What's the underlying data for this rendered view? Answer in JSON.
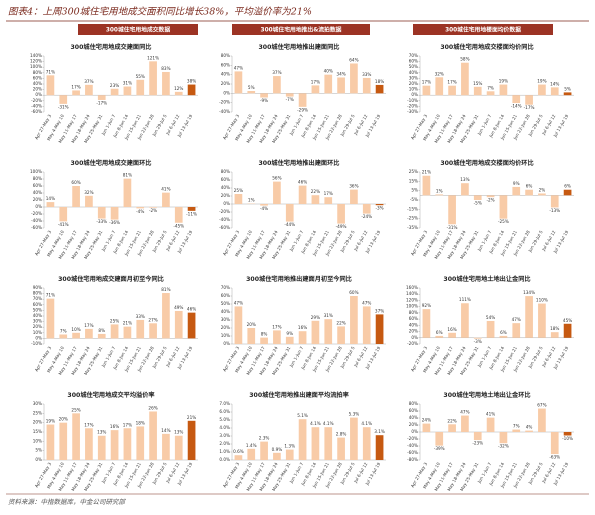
{
  "header": {
    "title": "图表4：上周300城住宅用地成交面积同比增长38%，平均溢价率为21%"
  },
  "tabs": [
    "300城住宅用地成交数据",
    "300城住宅用地推出&流拍数据",
    "300城住宅用地楼面均价数据"
  ],
  "chart_data": [
    {
      "type": "bar",
      "title": "300城住宅用地成交建面同比",
      "categories": [
        "Apr 27-May 3",
        "May 4-May 10",
        "May 11-May 17",
        "May 18-May 24",
        "May 25-May 31",
        "Jun 1-Jun 7",
        "Jun 8-Jun 14",
        "Jun 15-Jun 21",
        "Jun 22-Jun 28",
        "Jun 29-Jul 5",
        "Jul 6-Jul 12",
        "Jul 13-Jul 19"
      ],
      "values": [
        71,
        -31,
        17,
        37,
        -17,
        23,
        31,
        55,
        121,
        83,
        12,
        38
      ],
      "value_labels": [
        "71%",
        "-31%",
        "17%",
        "37%",
        "-17%",
        "23%",
        "31%",
        "55%",
        "121%",
        "83%",
        "12%",
        "38%"
      ],
      "color": "#f8cba7",
      "last_color": "#c65911",
      "ylim": [
        -60,
        140
      ],
      "yticks": [
        {
          "value": -60,
          "label": "-60%"
        },
        {
          "value": -40,
          "label": "-40%"
        },
        {
          "value": -20,
          "label": "-20%"
        },
        {
          "value": 0,
          "label": "0%"
        },
        {
          "value": 20,
          "label": "20%"
        },
        {
          "value": 40,
          "label": "40%"
        },
        {
          "value": 60,
          "label": "60%"
        },
        {
          "value": 80,
          "label": "80%"
        },
        {
          "value": 100,
          "label": "100%"
        },
        {
          "value": 120,
          "label": "120%"
        },
        {
          "value": 140,
          "label": "140%"
        }
      ]
    },
    {
      "type": "bar",
      "title": "300城住宅用地推出建面同比",
      "categories": [
        "Apr 27-May 3",
        "May 4-May 10",
        "May 11-May 17",
        "May 18-May 24",
        "May 25-May 31",
        "Jun 1-Jun 7",
        "Jun 8-Jun 14",
        "Jun 15-Jun 21",
        "Jun 22-Jun 28",
        "Jun 29-Jul 5",
        "Jul 6-Jul 12",
        "Jul 13-Jul 19"
      ],
      "values": [
        47,
        5,
        -9,
        37,
        -7,
        -29,
        17,
        40,
        34,
        64,
        33,
        18
      ],
      "value_labels": [
        "47%",
        "5%",
        "-9%",
        "37%",
        "-7%",
        "-29%",
        "17%",
        "40%",
        "34%",
        "64%",
        "33%",
        "18%"
      ],
      "color": "#f8cba7",
      "last_color": "#c65911",
      "ylim": [
        -40,
        80
      ],
      "yticks": [
        {
          "value": -40,
          "label": "-40%"
        },
        {
          "value": -20,
          "label": "-20%"
        },
        {
          "value": 0,
          "label": "0%"
        },
        {
          "value": 20,
          "label": "20%"
        },
        {
          "value": 40,
          "label": "40%"
        },
        {
          "value": 60,
          "label": "60%"
        },
        {
          "value": 80,
          "label": "80%"
        }
      ]
    },
    {
      "type": "bar",
      "title": "300城住宅用地成交楼面均价同比",
      "categories": [
        "Apr 27-May 3",
        "May 4-May 10",
        "May 11-May 17",
        "May 18-May 24",
        "May 25-May 31",
        "Jun 1-Jun 7",
        "Jun 8-Jun 14",
        "Jun 15-Jun 21",
        "Jun 22-Jun 28",
        "Jun 29-Jul 5",
        "Jul 6-Jul 12",
        "Jul 13-Jul 19"
      ],
      "values": [
        17,
        32,
        17,
        58,
        15,
        7,
        19,
        -14,
        -17,
        19,
        14,
        5
      ],
      "value_labels": [
        "17%",
        "32%",
        "17%",
        "58%",
        "15%",
        "7%",
        "19%",
        "-14%",
        "-17%",
        "19%",
        "14%",
        "5%"
      ],
      "color": "#f8cba7",
      "last_color": "#c65911",
      "ylim": [
        -30,
        70
      ],
      "yticks": [
        {
          "value": -30,
          "label": "-30%"
        },
        {
          "value": -20,
          "label": "-20%"
        },
        {
          "value": -10,
          "label": "-10%"
        },
        {
          "value": 0,
          "label": "0%"
        },
        {
          "value": 10,
          "label": "10%"
        },
        {
          "value": 20,
          "label": "20%"
        },
        {
          "value": 30,
          "label": "30%"
        },
        {
          "value": 40,
          "label": "40%"
        },
        {
          "value": 50,
          "label": "50%"
        },
        {
          "value": 60,
          "label": "60%"
        },
        {
          "value": 70,
          "label": "70%"
        }
      ]
    },
    {
      "type": "bar",
      "title": "300城住宅用地成交建面环比",
      "categories": [
        "Apr 27-May 3",
        "May 4-May 10",
        "May 11-May 17",
        "May 18-May 24",
        "May 25-May 31",
        "Jun 1-Jun 7",
        "Jun 8-Jun 14",
        "Jun 15-Jun 21",
        "Jun 22-Jun 28",
        "Jun 29-Jul 5",
        "Jul 6-Jul 12",
        "Jul 13-Jul 19"
      ],
      "values": [
        14,
        -41,
        60,
        32,
        -33,
        -36,
        81,
        -4,
        -2,
        41,
        -45,
        -11
      ],
      "value_labels": [
        "14%",
        "-41%",
        "60%",
        "32%",
        "-33%",
        "-36%",
        "81%",
        "-4%",
        "-2%",
        "41%",
        "-45%",
        "-11%"
      ],
      "color": "#f8cba7",
      "last_color": "#c65911",
      "ylim": [
        -60,
        100
      ],
      "yticks": [
        {
          "value": -60,
          "label": "-60%"
        },
        {
          "value": -40,
          "label": "-40%"
        },
        {
          "value": -20,
          "label": "-20%"
        },
        {
          "value": 0,
          "label": "0%"
        },
        {
          "value": 20,
          "label": "20%"
        },
        {
          "value": 40,
          "label": "40%"
        },
        {
          "value": 60,
          "label": "60%"
        },
        {
          "value": 80,
          "label": "80%"
        },
        {
          "value": 100,
          "label": "100%"
        }
      ]
    },
    {
      "type": "bar",
      "title": "300城住宅用地推出建面环比",
      "categories": [
        "Apr 27-May 3",
        "May 4-May 10",
        "May 11-May 17",
        "May 18-May 24",
        "May 25-May 31",
        "Jun 1-Jun 7",
        "Jun 8-Jun 14",
        "Jun 15-Jun 21",
        "Jun 22-Jun 28",
        "Jun 29-Jul 5",
        "Jul 6-Jul 12",
        "Jul 13-Jul 19"
      ],
      "values": [
        25,
        1,
        -4,
        56,
        -44,
        46,
        22,
        17,
        -49,
        36,
        -24,
        -3
      ],
      "value_labels": [
        "25%",
        "1%",
        "-4%",
        "56%",
        "-44%",
        "46%",
        "22%",
        "17%",
        "-49%",
        "36%",
        "-24%",
        "-3%"
      ],
      "color": "#f8cba7",
      "last_color": "#c65911",
      "ylim": [
        -60,
        80
      ],
      "yticks": [
        {
          "value": -60,
          "label": "-60%"
        },
        {
          "value": -40,
          "label": "-40%"
        },
        {
          "value": -20,
          "label": "-20%"
        },
        {
          "value": 0,
          "label": "0%"
        },
        {
          "value": 20,
          "label": "20%"
        },
        {
          "value": 40,
          "label": "40%"
        },
        {
          "value": 60,
          "label": "60%"
        },
        {
          "value": 80,
          "label": "80%"
        }
      ]
    },
    {
      "type": "bar",
      "title": "300城住宅用地成交楼面均价环比",
      "categories": [
        "Apr 27-May 3",
        "May 4-May 10",
        "May 11-May 17",
        "May 18-May 24",
        "May 25-May 31",
        "Jun 1-Jun 7",
        "Jun 8-Jun 14",
        "Jun 15-Jun 21",
        "Jun 22-Jun 28",
        "Jun 29-Jul 5",
        "Jul 6-Jul 12",
        "Jul 13-Jul 19"
      ],
      "values": [
        21,
        1,
        -31,
        13,
        -5,
        -2,
        -25,
        9,
        6,
        2,
        -13,
        6
      ],
      "value_labels": [
        "21%",
        "1%",
        "-31%",
        "13%",
        "-5%",
        "-2%",
        "-25%",
        "9%",
        "6%",
        "2%",
        "-13%",
        "6%"
      ],
      "color": "#f8cba7",
      "last_color": "#c65911",
      "ylim": [
        -35,
        25
      ],
      "yticks": [
        {
          "value": -35,
          "label": "-35%"
        },
        {
          "value": -25,
          "label": "-25%"
        },
        {
          "value": -15,
          "label": "-15%"
        },
        {
          "value": -5,
          "label": "-5%"
        },
        {
          "value": 5,
          "label": "5%"
        },
        {
          "value": 15,
          "label": "15%"
        },
        {
          "value": 25,
          "label": "25%"
        }
      ]
    },
    {
      "type": "bar",
      "title": "300城住宅用地成交建面月初至今同比",
      "categories": [
        "Apr 27-May 3",
        "May 4-May 10",
        "May 11-May 17",
        "May 18-May 24",
        "May 25-May 31",
        "Jun 1-Jun 7",
        "Jun 8-Jun 14",
        "Jun 15-Jun 21",
        "Jun 22-Jun 28",
        "Jun 29-Jul 5",
        "Jul 6-Jul 12",
        "Jul 13-Jul 19"
      ],
      "values": [
        71,
        7,
        10,
        17,
        8,
        25,
        21,
        33,
        27,
        81,
        49,
        46
      ],
      "value_labels": [
        "71%",
        "7%",
        "10%",
        "17%",
        "8%",
        "25%",
        "21%",
        "33%",
        "27%",
        "81%",
        "49%",
        "46%"
      ],
      "color": "#f8cba7",
      "last_color": "#c65911",
      "ylim": [
        -10,
        90
      ],
      "yticks": [
        {
          "value": -10,
          "label": "-10%"
        },
        {
          "value": 0,
          "label": "0%"
        },
        {
          "value": 10,
          "label": "10%"
        },
        {
          "value": 20,
          "label": "20%"
        },
        {
          "value": 30,
          "label": "30%"
        },
        {
          "value": 40,
          "label": "40%"
        },
        {
          "value": 50,
          "label": "50%"
        },
        {
          "value": 60,
          "label": "60%"
        },
        {
          "value": 70,
          "label": "70%"
        },
        {
          "value": 80,
          "label": "80%"
        },
        {
          "value": 90,
          "label": "90%"
        }
      ]
    },
    {
      "type": "bar",
      "title": "300城住宅用地推出建面月初至今同比",
      "categories": [
        "Apr 27-May 3",
        "May 4-May 10",
        "May 11-May 17",
        "May 18-May 24",
        "May 25-May 31",
        "Jun 1-Jun 7",
        "Jun 8-Jun 14",
        "Jun 15-Jun 21",
        "Jun 22-Jun 28",
        "Jun 29-Jul 5",
        "Jul 6-Jul 12",
        "Jul 13-Jul 19"
      ],
      "values": [
        47,
        20,
        8,
        17,
        9,
        16,
        29,
        31,
        22,
        60,
        47,
        37
      ],
      "value_labels": [
        "47%",
        "20%",
        "8%",
        "17%",
        "9%",
        "16%",
        "29%",
        "31%",
        "22%",
        "60%",
        "47%",
        "37%"
      ],
      "color": "#f8cba7",
      "last_color": "#c65911",
      "ylim": [
        0,
        70
      ],
      "yticks": [
        {
          "value": 0,
          "label": "0%"
        },
        {
          "value": 10,
          "label": "10%"
        },
        {
          "value": 20,
          "label": "20%"
        },
        {
          "value": 30,
          "label": "30%"
        },
        {
          "value": 40,
          "label": "40%"
        },
        {
          "value": 50,
          "label": "50%"
        },
        {
          "value": 60,
          "label": "60%"
        },
        {
          "value": 70,
          "label": "70%"
        }
      ]
    },
    {
      "type": "bar",
      "title": "300城住宅用地土地出让金同比",
      "categories": [
        "Apr 27-May 3",
        "May 4-May 10",
        "May 11-May 17",
        "May 18-May 24",
        "May 25-May 31",
        "Jun 1-Jun 7",
        "Jun 8-Jun 14",
        "Jun 15-Jun 21",
        "Jun 22-Jun 28",
        "Jun 29-Jul 5",
        "Jul 6-Jul 12",
        "Jul 13-Jul 19"
      ],
      "values": [
        92,
        6,
        16,
        111,
        -3,
        54,
        6,
        47,
        134,
        110,
        18,
        45
      ],
      "value_labels": [
        "92%",
        "6%",
        "16%",
        "111%",
        "-3%",
        "54%",
        "6%",
        "47%",
        "134%",
        "110%",
        "18%",
        "45%"
      ],
      "color": "#f8cba7",
      "last_color": "#c65911",
      "ylim": [
        -20,
        160
      ],
      "yticks": [
        {
          "value": -20,
          "label": "-20%"
        },
        {
          "value": 0,
          "label": "0%"
        },
        {
          "value": 20,
          "label": "20%"
        },
        {
          "value": 40,
          "label": "40%"
        },
        {
          "value": 60,
          "label": "60%"
        },
        {
          "value": 80,
          "label": "80%"
        },
        {
          "value": 100,
          "label": "100%"
        },
        {
          "value": 120,
          "label": "120%"
        },
        {
          "value": 140,
          "label": "140%"
        },
        {
          "value": 160,
          "label": "160%"
        }
      ]
    },
    {
      "type": "bar",
      "title": "300城住宅用地成交平均溢价率",
      "categories": [
        "Apr 27-May 3",
        "May 4-May 10",
        "May 11-May 17",
        "May 18-May 24",
        "May 25-May 31",
        "Jun 1-Jun 7",
        "Jun 8-Jun 14",
        "Jun 15-Jun 21",
        "Jun 22-Jun 28",
        "Jun 29-Jul 5",
        "Jul 6-Jul 12",
        "Jul 13-Jul 19"
      ],
      "values": [
        19,
        20,
        25,
        17,
        13,
        16,
        17,
        18,
        26,
        14,
        13,
        21
      ],
      "value_labels": [
        "19%",
        "20%",
        "25%",
        "17%",
        "13%",
        "16%",
        "17%",
        "18%",
        "26%",
        "14%",
        "13%",
        "21%"
      ],
      "color": "#f8cba7",
      "last_color": "#c65911",
      "ylim": [
        0,
        30
      ],
      "yticks": [
        {
          "value": 0,
          "label": "0%"
        },
        {
          "value": 5,
          "label": "5%"
        },
        {
          "value": 10,
          "label": "10%"
        },
        {
          "value": 15,
          "label": "15%"
        },
        {
          "value": 20,
          "label": "20%"
        },
        {
          "value": 25,
          "label": "25%"
        },
        {
          "value": 30,
          "label": "30%"
        }
      ]
    },
    {
      "type": "bar",
      "title": "300城住宅用地推出建面平均流拍率",
      "categories": [
        "Apr 27-May 3",
        "May 4-May 10",
        "May 11-May 17",
        "May 18-May 24",
        "May 25-May 31",
        "Jun 1-Jun 7",
        "Jun 8-Jun 14",
        "Jun 15-Jun 21",
        "Jun 22-Jun 28",
        "Jun 29-Jul 5",
        "Jul 6-Jul 12",
        "Jul 13-Jul 19"
      ],
      "values": [
        0.6,
        1.4,
        2.3,
        0.9,
        1.3,
        5.1,
        4.1,
        4.1,
        2.8,
        5.3,
        4.1,
        3.1
      ],
      "value_labels": [
        "0.6%",
        "1.4%",
        "2.3%",
        "0.9%",
        "1.3%",
        "5.1%",
        "4.1%",
        "4.1%",
        "2.8%",
        "5.3%",
        "4.1%",
        "3.1%"
      ],
      "color": "#f8cba7",
      "last_color": "#c65911",
      "ylim": [
        0,
        7
      ],
      "yticks": [
        {
          "value": 0,
          "label": "0.0%"
        },
        {
          "value": 1,
          "label": "1.0%"
        },
        {
          "value": 2,
          "label": "2.0%"
        },
        {
          "value": 3,
          "label": "3.0%"
        },
        {
          "value": 4,
          "label": "4.0%"
        },
        {
          "value": 5,
          "label": "5.0%"
        },
        {
          "value": 6,
          "label": "6.0%"
        },
        {
          "value": 7,
          "label": "7.0%"
        }
      ]
    },
    {
      "type": "bar",
      "title": "300城住宅用地土地出让金环比",
      "categories": [
        "Apr 27-May 3",
        "May 4-May 10",
        "May 11-May 17",
        "May 18-May 24",
        "May 25-May 31",
        "Jun 1-Jun 7",
        "Jun 8-Jun 14",
        "Jun 15-Jun 21",
        "Jun 22-Jun 28",
        "Jun 29-Jul 5",
        "Jul 6-Jul 12",
        "Jul 13-Jul 19"
      ],
      "values": [
        24,
        -39,
        22,
        47,
        -23,
        41,
        -32,
        7,
        4,
        67,
        -63,
        -10
      ],
      "value_labels": [
        "24%",
        "-39%",
        "22%",
        "47%",
        "-23%",
        "41%",
        "-32%",
        "7%",
        "4%",
        "67%",
        "-63%",
        "-10%"
      ],
      "color": "#f8cba7",
      "last_color": "#c65911",
      "ylim": [
        -80,
        80
      ],
      "yticks": [
        {
          "value": -80,
          "label": "-80%"
        },
        {
          "value": -60,
          "label": "-60%"
        },
        {
          "value": -40,
          "label": "-40%"
        },
        {
          "value": -20,
          "label": "-20%"
        },
        {
          "value": 0,
          "label": "0%"
        },
        {
          "value": 20,
          "label": "20%"
        },
        {
          "value": 40,
          "label": "40%"
        },
        {
          "value": 60,
          "label": "60%"
        },
        {
          "value": 80,
          "label": "80%"
        }
      ]
    }
  ],
  "footer": {
    "source": "资料来源：中指数据库，中金公司研究部"
  }
}
